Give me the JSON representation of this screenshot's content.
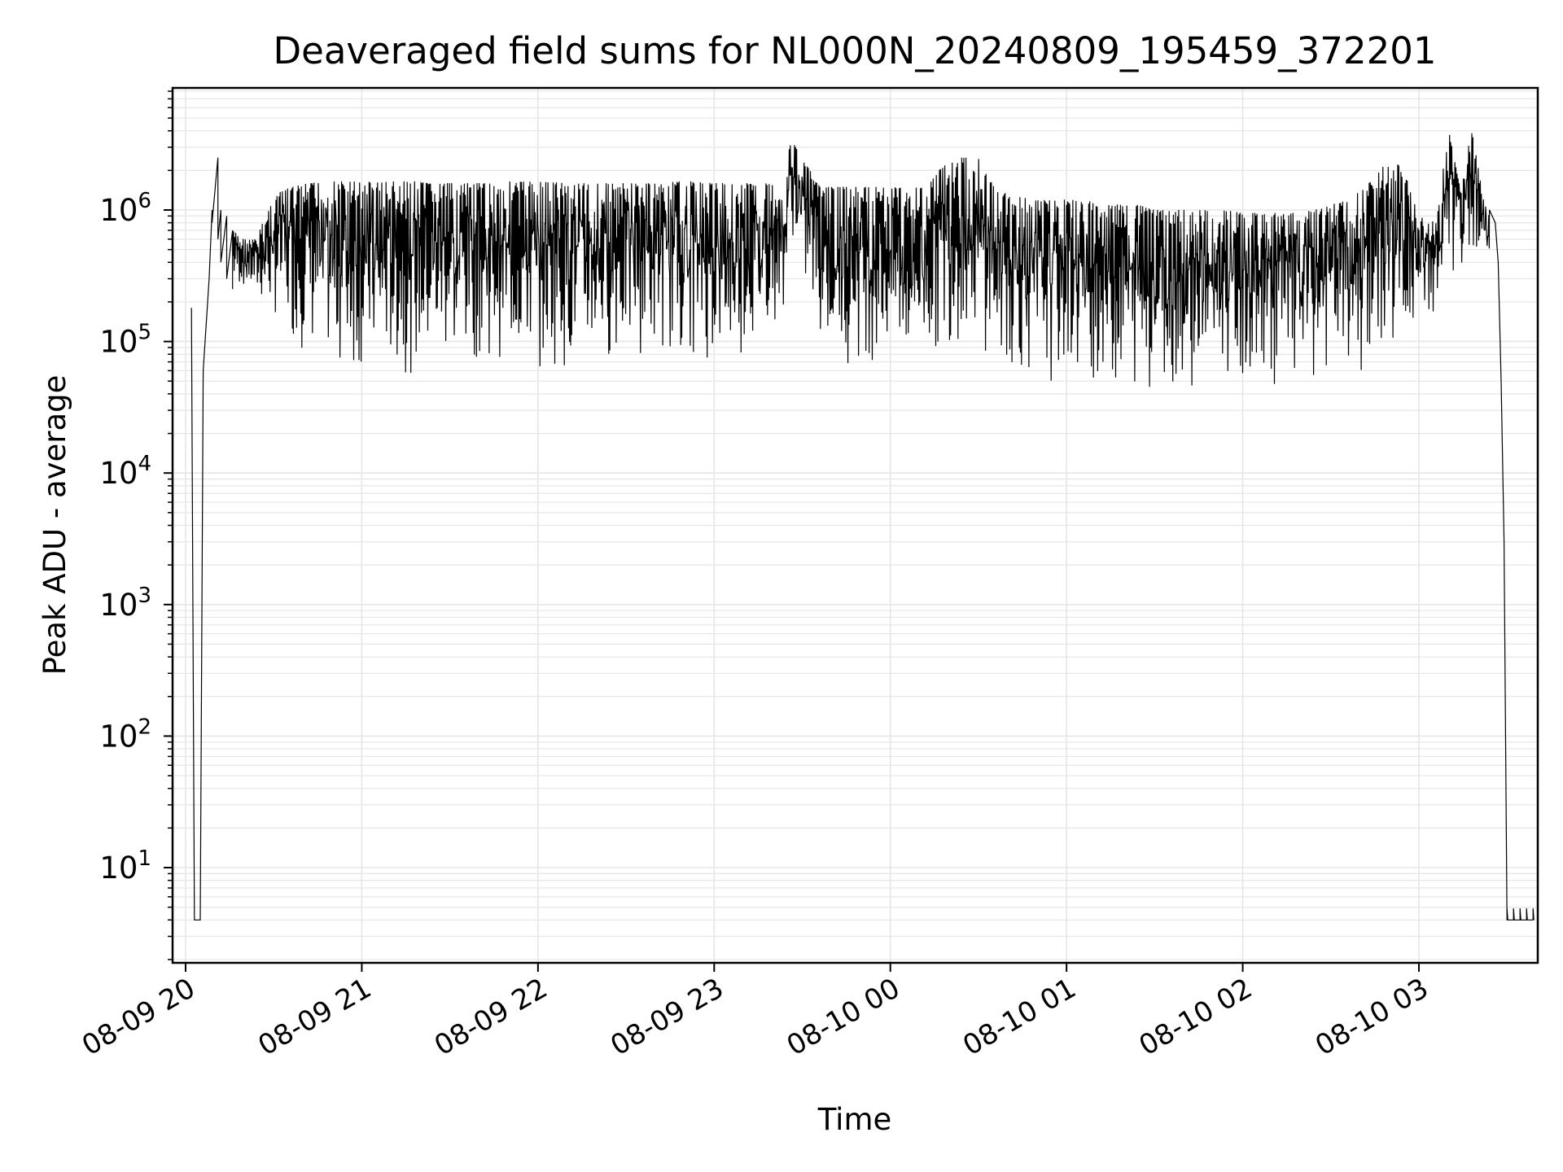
{
  "chart_data": {
    "type": "line",
    "title": "Deaveraged field sums for NL000N_20240809_195459_372201",
    "xlabel": "Time",
    "ylabel": "Peak ADU - average",
    "yscale": "log",
    "ylim": [
      2,
      8500000
    ],
    "xlim": [
      "2024-08-09 19:55",
      "2024-08-10 03:39"
    ],
    "grid": "major and minor",
    "line_color": "#000000",
    "grid_color": "#e6e6e6",
    "x_tick_labels": [
      "08-09 20",
      "08-09 21",
      "08-09 22",
      "08-09 23",
      "08-10 00",
      "08-10 01",
      "08-10 02",
      "08-10 03"
    ],
    "x_ticks": [
      "2024-08-09 20:00",
      "2024-08-09 21:00",
      "2024-08-09 22:00",
      "2024-08-09 23:00",
      "2024-08-10 00:00",
      "2024-08-10 01:00",
      "2024-08-10 02:00",
      "2024-08-10 03:00"
    ],
    "y_ticks": [
      {
        "value": 10,
        "base": "10",
        "exp": "1"
      },
      {
        "value": 100,
        "base": "10",
        "exp": "2"
      },
      {
        "value": 1000,
        "base": "10",
        "exp": "3"
      },
      {
        "value": 10000,
        "base": "10",
        "exp": "4"
      },
      {
        "value": 100000,
        "base": "10",
        "exp": "5"
      },
      {
        "value": 1000000,
        "base": "10",
        "exp": "6"
      }
    ],
    "series": [
      {
        "x": [
          "2024-08-09 20:02",
          "2024-08-09 20:03",
          "2024-08-09 20:04",
          "2024-08-09 20:05",
          "2024-08-09 20:06",
          "2024-08-09 20:08",
          "2024-08-09 20:09",
          "2024-08-09 20:11",
          "2024-08-09 20:12",
          "2024-08-09 20:14",
          "2024-08-09 20:16",
          "2024-08-09 20:20",
          "2024-08-09 20:24",
          "2024-08-09 20:30",
          "2024-08-09 20:36",
          "2024-08-09 20:42",
          "2024-08-09 20:48",
          "2024-08-09 20:54",
          "2024-08-09 21:00",
          "2024-08-09 21:06",
          "2024-08-09 21:12",
          "2024-08-09 21:18",
          "2024-08-09 21:24",
          "2024-08-09 21:30",
          "2024-08-09 21:36",
          "2024-08-09 21:42",
          "2024-08-09 21:48",
          "2024-08-09 21:54",
          "2024-08-09 22:00",
          "2024-08-09 22:06",
          "2024-08-09 22:12",
          "2024-08-09 22:18",
          "2024-08-09 22:24",
          "2024-08-09 22:30",
          "2024-08-09 22:36",
          "2024-08-09 22:42",
          "2024-08-09 22:48",
          "2024-08-09 22:54",
          "2024-08-09 23:00",
          "2024-08-09 23:06",
          "2024-08-09 23:12",
          "2024-08-09 23:18",
          "2024-08-09 23:24",
          "2024-08-09 23:26",
          "2024-08-09 23:30",
          "2024-08-09 23:36",
          "2024-08-09 23:42",
          "2024-08-09 23:48",
          "2024-08-09 23:54",
          "2024-08-10 00:00",
          "2024-08-10 00:06",
          "2024-08-10 00:12",
          "2024-08-10 00:18",
          "2024-08-10 00:24",
          "2024-08-10 00:30",
          "2024-08-10 00:36",
          "2024-08-10 00:42",
          "2024-08-10 00:48",
          "2024-08-10 00:54",
          "2024-08-10 01:00",
          "2024-08-10 01:06",
          "2024-08-10 01:12",
          "2024-08-10 01:18",
          "2024-08-10 01:24",
          "2024-08-10 01:30",
          "2024-08-10 01:36",
          "2024-08-10 01:42",
          "2024-08-10 01:48",
          "2024-08-10 01:54",
          "2024-08-10 02:00",
          "2024-08-10 02:06",
          "2024-08-10 02:12",
          "2024-08-10 02:18",
          "2024-08-10 02:24",
          "2024-08-10 02:30",
          "2024-08-10 02:36",
          "2024-08-10 02:42",
          "2024-08-10 02:48",
          "2024-08-10 02:54",
          "2024-08-10 03:00",
          "2024-08-10 03:06",
          "2024-08-10 03:10",
          "2024-08-10 03:14",
          "2024-08-10 03:18",
          "2024-08-10 03:22",
          "2024-08-10 03:24",
          "2024-08-10 03:26",
          "2024-08-10 03:27",
          "2024-08-10 03:28",
          "2024-08-10 03:29",
          "2024-08-10 03:30",
          "2024-08-10 03:39"
        ],
        "max": [
          180000,
          4,
          4,
          4,
          60000,
          300000,
          1000000,
          2500000,
          1000000,
          900000,
          700000,
          600000,
          600000,
          1300000,
          1500000,
          1600000,
          1650000,
          1650000,
          1650000,
          1650000,
          1650000,
          1650000,
          1600000,
          1600000,
          1600000,
          1600000,
          1650000,
          1650000,
          1650000,
          1650000,
          1600000,
          1600000,
          1600000,
          1600000,
          1600000,
          1600000,
          1650000,
          1650000,
          1600000,
          1600000,
          1600000,
          1600000,
          1500000,
          3500000,
          2500000,
          1500000,
          1500000,
          1500000,
          1500000,
          1500000,
          1500000,
          1500000,
          2200000,
          2500000,
          2500000,
          1400000,
          1300000,
          1200000,
          1200000,
          1200000,
          1200000,
          1100000,
          1100000,
          1100000,
          1000000,
          1000000,
          1000000,
          1000000,
          1000000,
          950000,
          950000,
          950000,
          950000,
          1000000,
          1100000,
          1200000,
          1500000,
          2200000,
          2300000,
          900000,
          800000,
          4200000,
          1500000,
          4100000,
          1200000,
          1000000,
          800000,
          400000,
          50000,
          3000,
          4,
          4
        ],
        "min": [
          180000,
          4,
          4,
          4,
          60000,
          300000,
          800000,
          600000,
          400000,
          300000,
          250000,
          250000,
          200000,
          150000,
          100000,
          80000,
          70000,
          60000,
          55000,
          60000,
          55000,
          55000,
          60000,
          70000,
          70000,
          70000,
          75000,
          65000,
          60000,
          65000,
          60000,
          65000,
          70000,
          75000,
          75000,
          80000,
          80000,
          70000,
          65000,
          70000,
          80000,
          120000,
          180000,
          700000,
          250000,
          100000,
          70000,
          65000,
          70000,
          60000,
          60000,
          70000,
          80000,
          100000,
          100000,
          60000,
          55000,
          50000,
          50000,
          50000,
          50000,
          45000,
          40000,
          40000,
          45000,
          45000,
          45000,
          50000,
          50000,
          50000,
          48000,
          45000,
          45000,
          45000,
          50000,
          55000,
          60000,
          70000,
          80000,
          120000,
          150000,
          200000,
          300000,
          500000,
          500000,
          300000,
          150000,
          40000,
          3000,
          4,
          4,
          4
        ]
      }
    ]
  }
}
